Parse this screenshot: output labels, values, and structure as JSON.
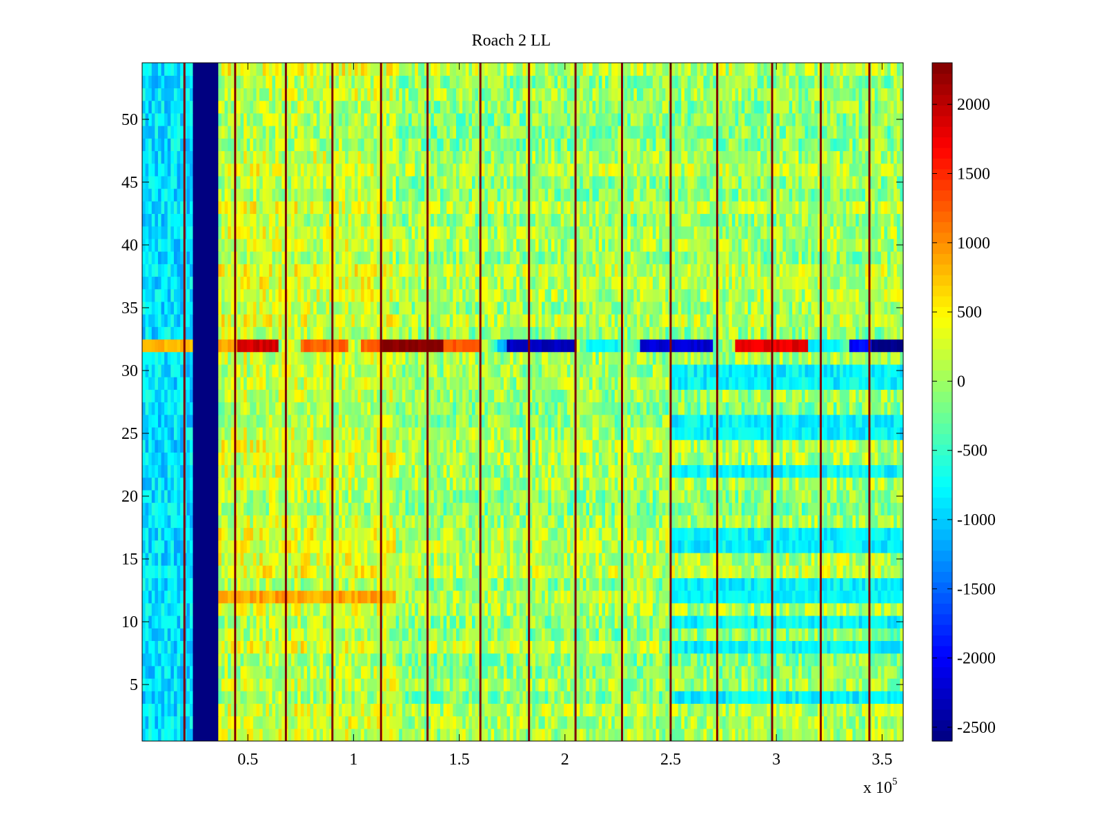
{
  "chart_data": {
    "type": "heatmap",
    "title": "Roach 2 LL",
    "xlabel": "",
    "ylabel": "",
    "xlim": [
      0,
      360000
    ],
    "ylim": [
      0.5,
      54.5
    ],
    "x_ticks": [
      50000,
      100000,
      150000,
      200000,
      250000,
      300000,
      350000
    ],
    "x_tick_labels": [
      "0.5",
      "1",
      "1.5",
      "2",
      "2.5",
      "3",
      "3.5"
    ],
    "x_exponent_label": "x 10",
    "x_exponent_power": "5",
    "y_ticks": [
      5,
      10,
      15,
      20,
      25,
      30,
      35,
      40,
      45,
      50
    ],
    "y_tick_labels": [
      "5",
      "10",
      "15",
      "20",
      "25",
      "30",
      "35",
      "40",
      "45",
      "50"
    ],
    "colormap": "jet",
    "colorbar": {
      "clim": [
        -2600,
        2300
      ],
      "ticks": [
        -2500,
        -2000,
        -1500,
        -1000,
        -500,
        0,
        500,
        1000,
        1500,
        2000
      ],
      "tick_labels": [
        "-2500",
        "-2000",
        "-1500",
        "-1000",
        "-500",
        "0",
        "500",
        "1000",
        "1500",
        "2000"
      ]
    },
    "rows": 54,
    "baseline_value": 0,
    "features": {
      "low_band_x": [
        24000,
        36000
      ],
      "low_band_value": -2600,
      "left_region_x_end": 24000,
      "left_region_value": -900,
      "spike_lines_x": [
        20000,
        44000,
        68000,
        90000,
        113000,
        135000,
        160000,
        183000,
        205000,
        227000,
        250000,
        272000,
        298000,
        321000,
        344000
      ],
      "spike_value": 2300,
      "row_32_segments": [
        {
          "x": [
            0,
            24000
          ],
          "value": 800
        },
        {
          "x": [
            36000,
            45000
          ],
          "value": 900
        },
        {
          "x": [
            45000,
            65000
          ],
          "value": 1900
        },
        {
          "x": [
            75000,
            97000
          ],
          "value": 1200
        },
        {
          "x": [
            103000,
            112000
          ],
          "value": 1200
        },
        {
          "x": [
            112000,
            143000
          ],
          "value": 2300
        },
        {
          "x": [
            143000,
            160000
          ],
          "value": 1300
        },
        {
          "x": [
            168000,
            172000
          ],
          "value": -1200
        },
        {
          "x": [
            172000,
            205000
          ],
          "value": -2300
        },
        {
          "x": [
            210000,
            225000
          ],
          "value": -800
        },
        {
          "x": [
            235000,
            270000
          ],
          "value": -2200
        },
        {
          "x": [
            280000,
            315000
          ],
          "value": 1800
        },
        {
          "x": [
            315000,
            330000
          ],
          "value": -800
        },
        {
          "x": [
            335000,
            345000
          ],
          "value": -2000
        },
        {
          "x": [
            345000,
            360000
          ],
          "value": -2600
        }
      ],
      "row_12_segment": {
        "x": [
          36000,
          120000
        ],
        "value": 900
      },
      "row_12_right_value": -800,
      "right_cool_rows": [
        4,
        8,
        10,
        13,
        16,
        17,
        22,
        25,
        26,
        29,
        30
      ],
      "right_cool_value": -800
    }
  }
}
